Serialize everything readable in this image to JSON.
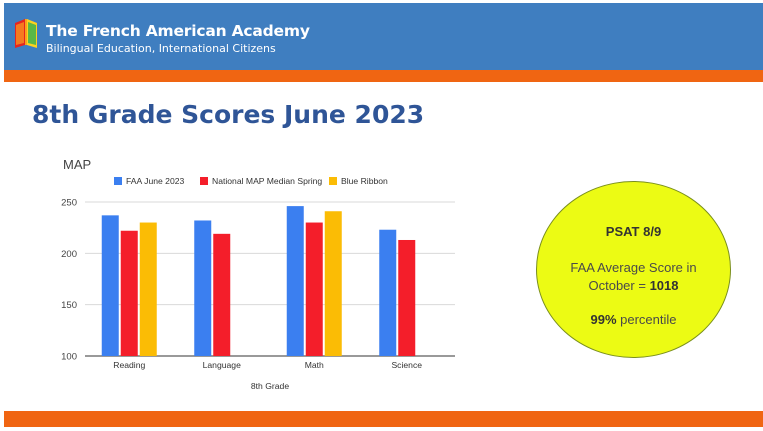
{
  "header": {
    "org_name": "The French American Academy",
    "tagline": "Bilingual Education, International Citizens"
  },
  "slide": {
    "title": "8th Grade Scores June 2023"
  },
  "chart_data": {
    "type": "bar",
    "title": "MAP",
    "xlabel": "8th Grade",
    "ylabel": "",
    "ylim": [
      100,
      250
    ],
    "yticks": [
      100,
      150,
      200,
      250
    ],
    "grid": true,
    "legend_position": "top",
    "categories": [
      "Reading",
      "Language",
      "Math",
      "Science"
    ],
    "series": [
      {
        "name": "FAA June 2023",
        "color": "#3b7ff0",
        "values": [
          237,
          232,
          246,
          223
        ]
      },
      {
        "name": "National MAP Median Spring",
        "color": "#f41e2a",
        "values": [
          222,
          219,
          230,
          213
        ]
      },
      {
        "name": "Blue Ribbon",
        "color": "#fbbc05",
        "values": [
          230,
          null,
          241,
          null
        ]
      }
    ]
  },
  "psat": {
    "heading": "PSAT 8/9",
    "avg_line1": "FAA Average Score in",
    "avg_line2_prefix": "October = ",
    "avg_value": "1018",
    "percentile_value": "99%",
    "percentile_suffix": " percentile"
  }
}
